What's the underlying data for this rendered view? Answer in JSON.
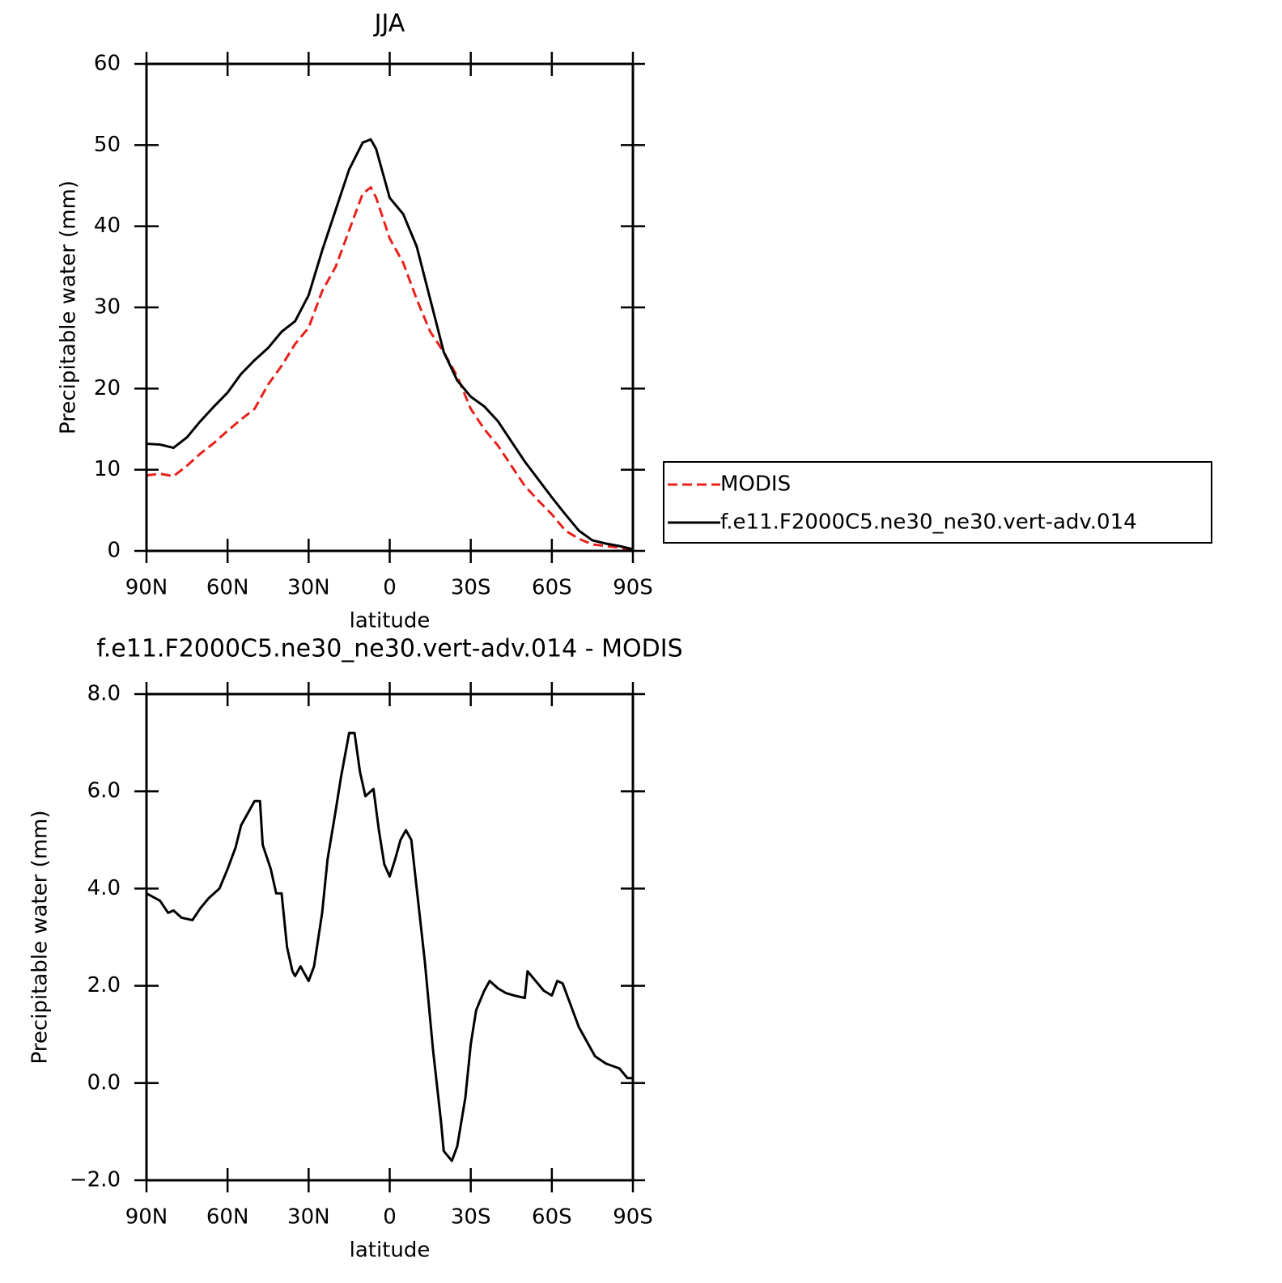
{
  "chart_data": [
    {
      "type": "line",
      "title": "JJA",
      "x_label": "latitude",
      "y_label": "Precipitable water (mm)",
      "x": [
        90,
        85,
        80,
        75,
        70,
        65,
        60,
        55,
        50,
        45,
        40,
        35,
        30,
        25,
        20,
        15,
        10,
        7,
        5,
        0,
        -5,
        -10,
        -15,
        -20,
        -25,
        -30,
        -35,
        -40,
        -45,
        -50,
        -55,
        -60,
        -65,
        -70,
        -75,
        -80,
        -85,
        -90
      ],
      "series": [
        {
          "name": "MODIS",
          "color": "#e8211a",
          "dashed": true,
          "values": [
            9.3,
            9.5,
            9.2,
            10.5,
            12.0,
            13.3,
            14.8,
            16.2,
            17.5,
            20.5,
            22.8,
            25.5,
            27.5,
            32,
            35,
            39.5,
            44,
            44.8,
            43.5,
            38.5,
            35.5,
            31,
            27,
            24.5,
            21.5,
            17.5,
            15,
            13,
            10.5,
            8,
            6.2,
            4.5,
            2.5,
            1.5,
            0.8,
            0.6,
            0.4,
            0.1
          ]
        },
        {
          "name": "f.e11.F2000C5.ne30_ne30.vert-adv.014",
          "color": "#000000",
          "dashed": false,
          "values": [
            13.2,
            13.1,
            12.7,
            14.0,
            16.0,
            17.8,
            19.5,
            21.8,
            23.5,
            25.0,
            27.0,
            28.3,
            31.5,
            37,
            42,
            47,
            50.3,
            50.7,
            49.5,
            43.5,
            41.5,
            37.5,
            31,
            24.5,
            21,
            19,
            17.8,
            16,
            13.5,
            11,
            8.8,
            6.6,
            4.5,
            2.5,
            1.3,
            0.9,
            0.6,
            0.2
          ]
        }
      ],
      "xlim": [
        90,
        -90
      ],
      "xticks": [
        {
          "value": 90,
          "label": "90N"
        },
        {
          "value": 60,
          "label": "60N"
        },
        {
          "value": 30,
          "label": "30N"
        },
        0,
        {
          "value": -30,
          "label": "30S"
        },
        {
          "value": -60,
          "label": "60S"
        },
        {
          "value": -90,
          "label": "90S"
        }
      ],
      "ylim": [
        0,
        60
      ],
      "yticks": [
        0,
        10,
        20,
        30,
        40,
        50,
        60
      ],
      "legend": "outside-right"
    },
    {
      "type": "line",
      "title": "f.e11.F2000C5.ne30_ne30.vert-adv.014 - MODIS",
      "x_label": "latitude",
      "y_label": "Precipitable water (mm)",
      "x": [
        90,
        85,
        82,
        80,
        77,
        73,
        70,
        67,
        63,
        60,
        57,
        55,
        52,
        50,
        48,
        47,
        44,
        42,
        40,
        38,
        36,
        35,
        33,
        30,
        28,
        25,
        23,
        20,
        18,
        15,
        13,
        11,
        9,
        7,
        6,
        4,
        2,
        0,
        -2,
        -4,
        -6,
        -8,
        -10,
        -13,
        -16,
        -19,
        -20,
        -23,
        -25,
        -28,
        -30,
        -32,
        -35,
        -37,
        -40,
        -43,
        -46,
        -50,
        -51,
        -54,
        -57,
        -60,
        -62,
        -64,
        -67,
        -70,
        -73,
        -76,
        -80,
        -85,
        -88,
        -90
      ],
      "values": [
        3.9,
        3.75,
        3.5,
        3.55,
        3.4,
        3.35,
        3.6,
        3.8,
        4.0,
        4.4,
        4.85,
        5.3,
        5.6,
        5.8,
        5.8,
        4.9,
        4.4,
        3.9,
        3.9,
        2.8,
        2.3,
        2.2,
        2.4,
        2.1,
        2.4,
        3.5,
        4.6,
        5.6,
        6.3,
        7.2,
        7.2,
        6.4,
        5.9,
        6.0,
        6.05,
        5.2,
        4.5,
        4.25,
        4.6,
        5.0,
        5.2,
        5.0,
        4.0,
        2.5,
        0.7,
        -0.8,
        -1.4,
        -1.6,
        -1.3,
        -0.3,
        0.8,
        1.5,
        1.9,
        2.1,
        1.95,
        1.85,
        1.8,
        1.75,
        2.3,
        2.1,
        1.9,
        1.8,
        2.1,
        2.05,
        1.6,
        1.15,
        0.85,
        0.55,
        0.4,
        0.3,
        0.1,
        0.1
      ],
      "color": "#000000",
      "xlim": [
        90,
        -90
      ],
      "xticks": [
        {
          "value": 90,
          "label": "90N"
        },
        {
          "value": 60,
          "label": "60N"
        },
        {
          "value": 30,
          "label": "30N"
        },
        0,
        {
          "value": -30,
          "label": "30S"
        },
        {
          "value": -60,
          "label": "60S"
        },
        {
          "value": -90,
          "label": "90S"
        }
      ],
      "ylim": [
        -2,
        8
      ],
      "yticks": [
        {
          "value": -2,
          "label": "−2.0"
        },
        {
          "value": 0,
          "label": "0.0"
        },
        {
          "value": 2,
          "label": "2.0"
        },
        {
          "value": 4,
          "label": "4.0"
        },
        {
          "value": 6,
          "label": "6.0"
        },
        {
          "value": 8,
          "label": "8.0"
        }
      ]
    }
  ]
}
